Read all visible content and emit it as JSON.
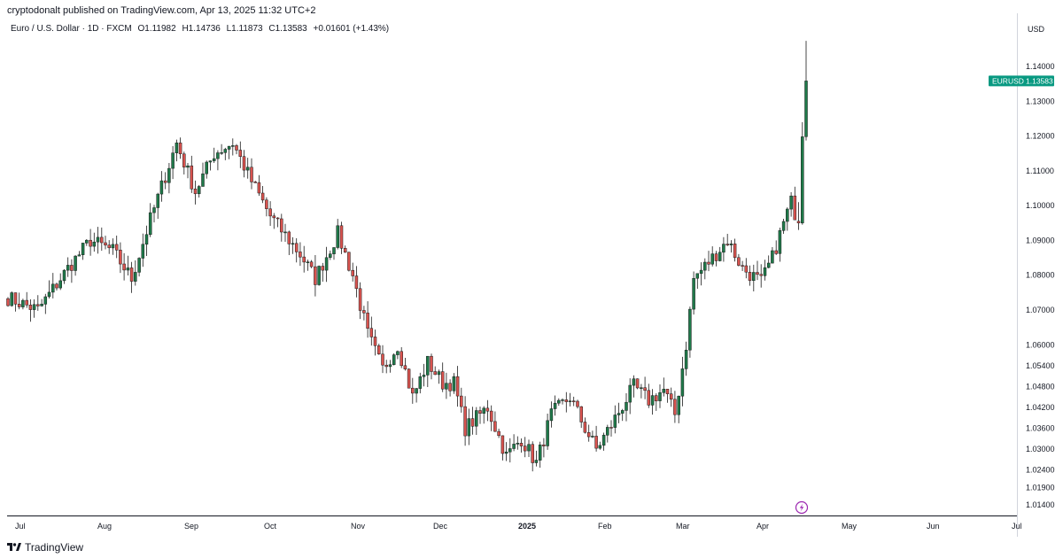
{
  "header": {
    "published": "cryptodonalt published on TradingView.com, Apr 13, 2025 11:32 UTC+2"
  },
  "legend": {
    "symbol": "Euro / U.S. Dollar · 1D · FXCM",
    "open": "O1.11982",
    "high": "H1.14736",
    "low": "L1.11873",
    "close": "C1.13583",
    "change": "+0.01601 (+1.43%)"
  },
  "footer": {
    "brand": "TradingView"
  },
  "price_tag": {
    "symbol": "EURUSD",
    "value": "1.13583",
    "color": "#089981"
  },
  "colors": {
    "up": "#089981",
    "down": "#f23645",
    "up_fill": "#1f7a4a",
    "down_fill": "#d9534f"
  },
  "chart_data": {
    "type": "candlestick",
    "ylabel": "USD",
    "ylim": [
      1.011,
      1.151
    ],
    "y_ticks": [
      1.014,
      1.019,
      1.024,
      1.03,
      1.036,
      1.042,
      1.048,
      1.054,
      1.06,
      1.07,
      1.08,
      1.09,
      1.1,
      1.11,
      1.12,
      1.13,
      1.14
    ],
    "y_tick_labels": [
      "1.01400",
      "1.01900",
      "1.02400",
      "1.03000",
      "1.03600",
      "1.04200",
      "1.04800",
      "1.05400",
      "1.06000",
      "1.07000",
      "1.08000",
      "1.09000",
      "1.10000",
      "1.11000",
      "1.12000",
      "1.13000",
      "1.14000"
    ],
    "x_labels": [
      "Jul",
      "Aug",
      "Sep",
      "Oct",
      "Nov",
      "Dec",
      "2025",
      "Feb",
      "Mar",
      "Apr",
      "May",
      "Jun",
      "Jul"
    ],
    "anchors": [
      [
        0,
        1.0735
      ],
      [
        8,
        1.07
      ],
      [
        16,
        1.082
      ],
      [
        22,
        1.09
      ],
      [
        28,
        1.087
      ],
      [
        33,
        1.079
      ],
      [
        38,
        1.096
      ],
      [
        45,
        1.118
      ],
      [
        50,
        1.104
      ],
      [
        55,
        1.115
      ],
      [
        60,
        1.118
      ],
      [
        65,
        1.107
      ],
      [
        70,
        1.097
      ],
      [
        78,
        1.086
      ],
      [
        82,
        1.079
      ],
      [
        88,
        1.092
      ],
      [
        92,
        1.08
      ],
      [
        96,
        1.063
      ],
      [
        100,
        1.053
      ],
      [
        104,
        1.06
      ],
      [
        108,
        1.045
      ],
      [
        112,
        1.055
      ],
      [
        116,
        1.049
      ],
      [
        119,
        1.049
      ],
      [
        122,
        1.036
      ],
      [
        128,
        1.042
      ],
      [
        133,
        1.028
      ],
      [
        137,
        1.033
      ],
      [
        141,
        1.026
      ],
      [
        145,
        1.04
      ],
      [
        150,
        1.045
      ],
      [
        154,
        1.036
      ],
      [
        157,
        1.03
      ],
      [
        161,
        1.037
      ],
      [
        167,
        1.048
      ],
      [
        171,
        1.044
      ],
      [
        175,
        1.047
      ],
      [
        178,
        1.04
      ],
      [
        181,
        1.06
      ],
      [
        183,
        1.079
      ],
      [
        188,
        1.085
      ],
      [
        192,
        1.09
      ],
      [
        196,
        1.082
      ],
      [
        201,
        1.078
      ],
      [
        204,
        1.085
      ],
      [
        207,
        1.095
      ],
      [
        209,
        1.101
      ],
      [
        211,
        1.095
      ],
      [
        212,
        1.12
      ],
      [
        213,
        1.1358
      ]
    ],
    "last": {
      "open": 1.11982,
      "high": 1.14736,
      "low": 1.11873,
      "close": 1.13583
    }
  }
}
